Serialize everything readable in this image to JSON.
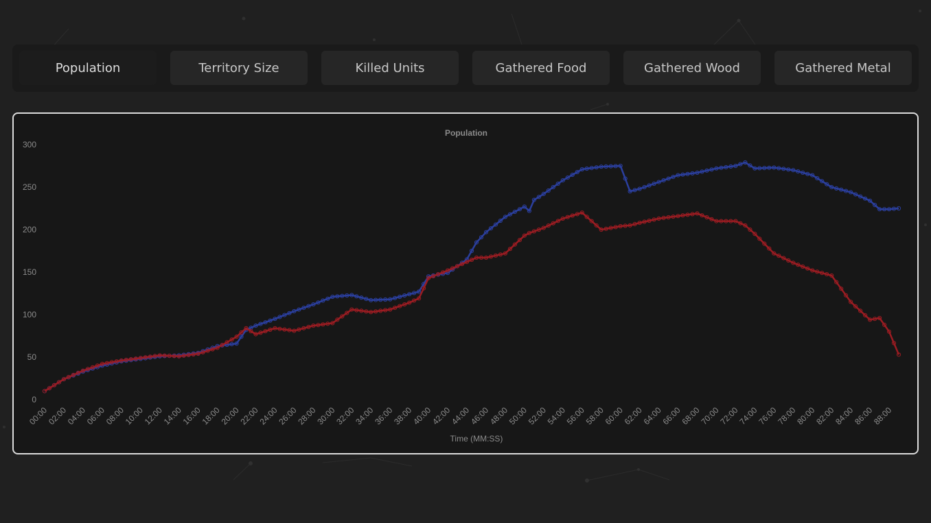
{
  "tabs": [
    {
      "label": "Population",
      "active": true
    },
    {
      "label": "Territory Size",
      "active": false
    },
    {
      "label": "Killed Units",
      "active": false
    },
    {
      "label": "Gathered Food",
      "active": false
    },
    {
      "label": "Gathered Wood",
      "active": false
    },
    {
      "label": "Gathered Metal",
      "active": false
    }
  ],
  "colors": {
    "background": "#202020",
    "panel": "#171717",
    "blue_series": "#2b3f9e",
    "red_series": "#9b1c22"
  },
  "chart_data": {
    "type": "line",
    "title": "Population",
    "xlabel": "Time (MM:SS)",
    "ylabel": "",
    "ylim": [
      0,
      300
    ],
    "yticks": [
      "0",
      "50",
      "100",
      "150",
      "200",
      "250",
      "300"
    ],
    "x_tick_labels": [
      "00:00",
      "02:00",
      "04:00",
      "06:00",
      "08:00",
      "10:00",
      "12:00",
      "14:00",
      "16:00",
      "18:00",
      "20:00",
      "22:00",
      "24:00",
      "26:00",
      "28:00",
      "30:00",
      "32:00",
      "34:00",
      "36:00",
      "38:00",
      "40:00",
      "42:00",
      "44:00",
      "46:00",
      "48:00",
      "50:00",
      "52:00",
      "54:00",
      "56:00",
      "58:00",
      "60:00",
      "62:00",
      "64:00",
      "66:00",
      "68:00",
      "70:00",
      "72:00",
      "74:00",
      "76:00",
      "78:00",
      "80:00",
      "82:00",
      "84:00",
      "86:00",
      "88:00"
    ],
    "x_minutes": [
      0,
      2,
      4,
      6,
      8,
      10,
      12,
      14,
      16,
      18,
      20,
      21,
      22,
      24,
      26,
      28,
      30,
      32,
      34,
      36,
      38,
      39,
      40,
      42,
      44,
      45,
      46,
      48,
      50,
      50.5,
      51,
      52,
      54,
      56,
      58,
      60,
      61,
      62,
      64,
      66,
      68,
      70,
      72,
      73,
      74,
      76,
      78,
      80,
      82,
      84,
      86,
      87,
      88,
      89
    ],
    "series": [
      {
        "color": "#2b3f9e",
        "values": [
          10,
          24,
          33,
          40,
          45,
          48,
          51,
          52,
          55,
          63,
          66,
          82,
          87,
          95,
          104,
          112,
          121,
          123,
          117,
          118,
          124,
          127,
          145,
          149,
          165,
          185,
          197,
          215,
          227,
          222,
          235,
          242,
          258,
          271,
          274,
          275,
          245,
          248,
          256,
          264,
          267,
          272,
          275,
          279,
          272,
          273,
          270,
          264,
          250,
          244,
          234,
          224,
          224,
          225
        ]
      },
      {
        "color": "#9b1c22",
        "values": [
          10,
          24,
          34,
          42,
          46,
          49,
          52,
          51,
          54,
          61,
          74,
          84,
          77,
          84,
          81,
          87,
          90,
          106,
          103,
          106,
          114,
          119,
          143,
          152,
          162,
          167,
          167,
          172,
          193,
          196,
          198,
          202,
          213,
          220,
          200,
          204,
          205,
          208,
          213,
          216,
          219,
          210,
          210,
          205,
          195,
          172,
          161,
          152,
          146,
          115,
          94,
          96,
          80,
          53
        ]
      }
    ]
  }
}
